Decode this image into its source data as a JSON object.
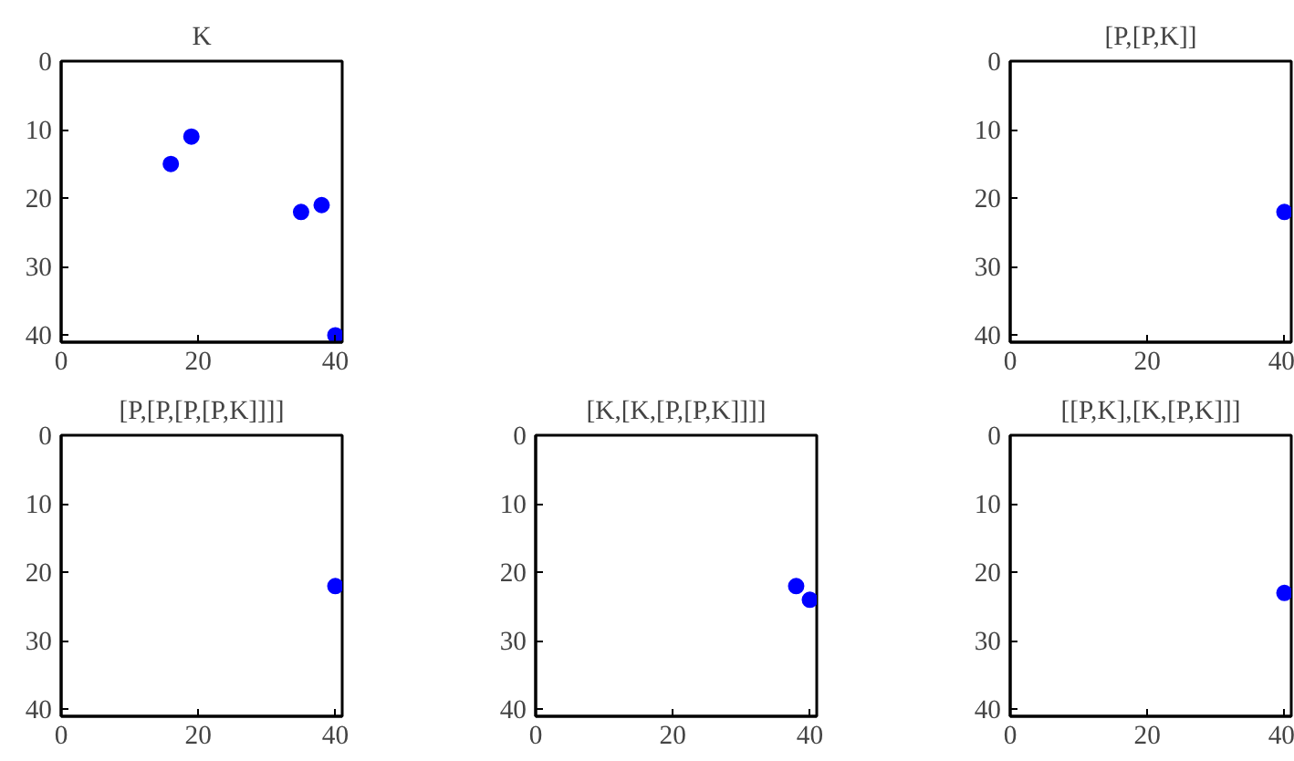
{
  "chart_data": [
    {
      "type": "scatter",
      "title": "K",
      "x": [
        16,
        19,
        35,
        38,
        40
      ],
      "values": [
        15,
        11,
        22,
        21,
        40
      ],
      "color": "#0000ff",
      "marker": "circle",
      "xlim": [
        0,
        41
      ],
      "ylim": [
        41,
        0
      ],
      "xticks": [
        0,
        20,
        40
      ],
      "yticks": [
        0,
        10,
        20,
        30,
        40
      ],
      "grid": false
    },
    {
      "type": "scatter",
      "title": "[P,[P,K]]",
      "x": [
        40
      ],
      "values": [
        22
      ],
      "color": "#0000ff",
      "marker": "circle",
      "xlim": [
        0,
        41
      ],
      "ylim": [
        41,
        0
      ],
      "xticks": [
        0,
        20,
        40
      ],
      "yticks": [
        0,
        10,
        20,
        30,
        40
      ],
      "grid": false
    },
    {
      "type": "scatter",
      "title": "[P,[P,[P,[P,K]]]]",
      "x": [
        40
      ],
      "values": [
        22
      ],
      "color": "#0000ff",
      "marker": "circle",
      "xlim": [
        0,
        41
      ],
      "ylim": [
        41,
        0
      ],
      "xticks": [
        0,
        20,
        40
      ],
      "yticks": [
        0,
        10,
        20,
        30,
        40
      ],
      "grid": false
    },
    {
      "type": "scatter",
      "title": "[K,[K,[P,[P,K]]]]",
      "x": [
        38,
        40
      ],
      "values": [
        22,
        24
      ],
      "color": "#0000ff",
      "marker": "circle",
      "xlim": [
        0,
        41
      ],
      "ylim": [
        41,
        0
      ],
      "xticks": [
        0,
        20,
        40
      ],
      "yticks": [
        0,
        10,
        20,
        30,
        40
      ],
      "grid": false
    },
    {
      "type": "scatter",
      "title": "[[P,K],[K,[P,K]]]",
      "x": [
        40
      ],
      "values": [
        23
      ],
      "color": "#0000ff",
      "marker": "circle",
      "xlim": [
        0,
        41
      ],
      "ylim": [
        41,
        0
      ],
      "xticks": [
        0,
        20,
        40
      ],
      "yticks": [
        0,
        10,
        20,
        30,
        40
      ],
      "grid": false
    }
  ]
}
